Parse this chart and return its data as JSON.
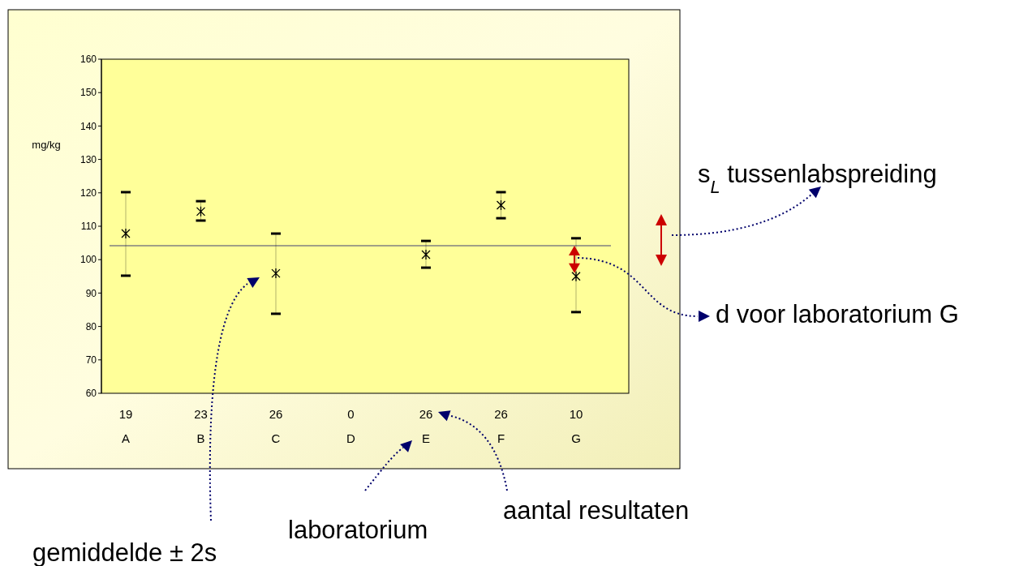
{
  "chart_data": {
    "type": "scatter",
    "ylabel": "mg/kg",
    "categories": [
      "19\nA",
      "23\nB",
      "26\nC",
      "0\nD",
      "26\nE",
      "26\nF",
      "10\nG"
    ],
    "series": [
      {
        "color": "#000000",
        "values": [
          107.8,
          114.4,
          95.9,
          null,
          101.5,
          116.3,
          95.0
        ],
        "errors": [
          [
            95.2,
            120.2
          ],
          [
            111.7,
            117.5
          ],
          [
            83.8,
            107.8
          ],
          null,
          [
            97.6,
            105.6
          ],
          [
            112.4,
            120.2
          ],
          [
            84.3,
            106.4
          ]
        ]
      }
    ],
    "ylim": [
      60,
      160
    ],
    "yticks": [
      60,
      70,
      80,
      90,
      100,
      110,
      120,
      130,
      140,
      150,
      160
    ],
    "marker": "cross",
    "grid": false,
    "ref_lines": [
      {
        "axis": "y",
        "value": 104.2,
        "color": "#808080"
      }
    ],
    "annotations": [
      "s$_{L}$ tussenlabspreiding",
      "d voor laboratorium G",
      "gemiddelde ± 2s",
      "laboratorium",
      "aantal resultaten"
    ]
  }
}
